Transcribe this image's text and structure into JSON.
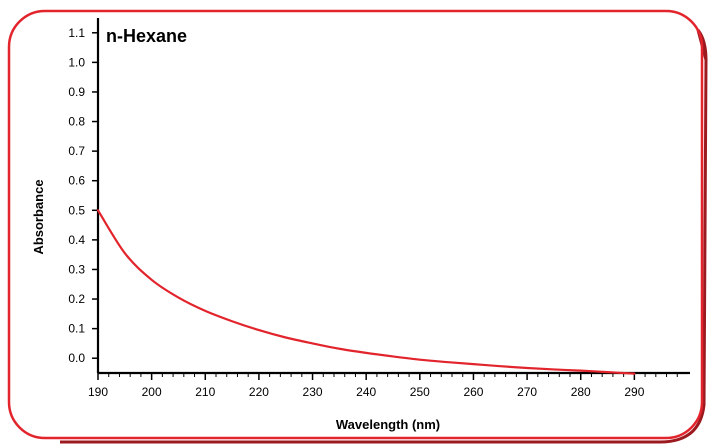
{
  "chart_data": {
    "type": "line",
    "title": "n-Hexane",
    "xlabel": "Wavelength (nm)",
    "ylabel": "Absorbance",
    "xlim": [
      190,
      300
    ],
    "ylim": [
      -0.05,
      1.15
    ],
    "x_ticks": [
      190,
      200,
      210,
      220,
      230,
      240,
      250,
      260,
      270,
      280,
      290
    ],
    "y_ticks": [
      0.0,
      0.1,
      0.2,
      0.3,
      0.4,
      0.5,
      0.6,
      0.7,
      0.8,
      0.9,
      1.0,
      1.1
    ],
    "x_tick_labels": [
      "190",
      "200",
      "210",
      "220",
      "230",
      "240",
      "250",
      "260",
      "270",
      "280",
      "290"
    ],
    "y_tick_labels": [
      "0.0",
      "0.1",
      "0.2",
      "0.3",
      "0.4",
      "0.5",
      "0.6",
      "0.7",
      "0.8",
      "0.9",
      "1.0",
      "1.1"
    ],
    "grid": false,
    "series": [
      {
        "color": "#e2242c",
        "x": [
          190,
          195,
          200,
          205,
          210,
          215,
          220,
          225,
          230,
          235,
          240,
          245,
          250,
          255,
          260,
          265,
          270,
          275,
          280,
          285,
          290
        ],
        "y": [
          0.5,
          0.355,
          0.265,
          0.205,
          0.16,
          0.125,
          0.095,
          0.07,
          0.05,
          0.032,
          0.018,
          0.006,
          -0.005,
          -0.013,
          -0.02,
          -0.027,
          -0.033,
          -0.038,
          -0.042,
          -0.047,
          -0.052
        ]
      }
    ]
  },
  "frame_color": "#e2242c"
}
